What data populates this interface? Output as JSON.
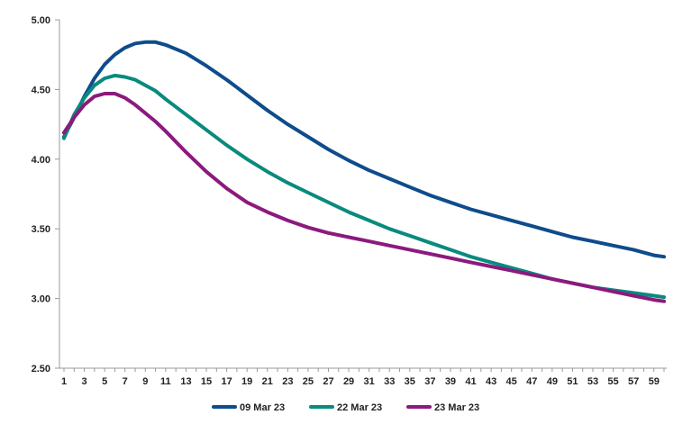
{
  "chart_data": {
    "type": "line",
    "title": "",
    "xlabel": "",
    "ylabel": "",
    "ylim": [
      2.5,
      5.0
    ],
    "xlim": [
      1,
      60
    ],
    "yticks": [
      "2.50",
      "3.00",
      "3.50",
      "4.00",
      "4.50",
      "5.00"
    ],
    "xticks": [
      "1",
      "3",
      "5",
      "7",
      "9",
      "11",
      "13",
      "15",
      "17",
      "19",
      "21",
      "23",
      "25",
      "27",
      "29",
      "31",
      "33",
      "35",
      "37",
      "39",
      "41",
      "43",
      "45",
      "47",
      "49",
      "51",
      "53",
      "55",
      "57",
      "59"
    ],
    "grid": false,
    "legend_position": "bottom",
    "series": [
      {
        "name": "09 Mar 23",
        "color": "#0E4C8B",
        "x": [
          1,
          2,
          3,
          4,
          5,
          6,
          7,
          8,
          9,
          10,
          11,
          13,
          15,
          17,
          19,
          21,
          23,
          25,
          27,
          29,
          31,
          33,
          35,
          37,
          39,
          41,
          43,
          45,
          47,
          49,
          51,
          53,
          55,
          57,
          59,
          60
        ],
        "y": [
          4.16,
          4.3,
          4.45,
          4.58,
          4.68,
          4.75,
          4.8,
          4.83,
          4.84,
          4.84,
          4.82,
          4.76,
          4.67,
          4.57,
          4.46,
          4.35,
          4.25,
          4.16,
          4.07,
          3.99,
          3.92,
          3.86,
          3.8,
          3.74,
          3.69,
          3.64,
          3.6,
          3.56,
          3.52,
          3.48,
          3.44,
          3.41,
          3.38,
          3.35,
          3.31,
          3.3
        ]
      },
      {
        "name": "22 Mar 23",
        "color": "#0A8A7E",
        "x": [
          1,
          2,
          3,
          4,
          5,
          6,
          7,
          8,
          9,
          10,
          11,
          13,
          15,
          17,
          19,
          21,
          23,
          25,
          27,
          29,
          31,
          33,
          35,
          37,
          39,
          41,
          43,
          45,
          47,
          49,
          51,
          53,
          55,
          57,
          59,
          60
        ],
        "y": [
          4.15,
          4.32,
          4.44,
          4.53,
          4.58,
          4.6,
          4.59,
          4.57,
          4.53,
          4.49,
          4.43,
          4.32,
          4.21,
          4.1,
          4.0,
          3.91,
          3.83,
          3.76,
          3.69,
          3.62,
          3.56,
          3.5,
          3.45,
          3.4,
          3.35,
          3.3,
          3.26,
          3.22,
          3.18,
          3.14,
          3.11,
          3.08,
          3.06,
          3.04,
          3.02,
          3.01
        ]
      },
      {
        "name": "23 Mar 23",
        "color": "#8C1A7E",
        "x": [
          1,
          2,
          3,
          4,
          5,
          6,
          7,
          8,
          9,
          10,
          11,
          13,
          15,
          17,
          19,
          21,
          23,
          25,
          27,
          29,
          31,
          33,
          35,
          37,
          39,
          41,
          43,
          45,
          47,
          49,
          51,
          53,
          55,
          57,
          59,
          60
        ],
        "y": [
          4.19,
          4.3,
          4.39,
          4.45,
          4.47,
          4.47,
          4.44,
          4.39,
          4.33,
          4.27,
          4.2,
          4.05,
          3.91,
          3.79,
          3.69,
          3.62,
          3.56,
          3.51,
          3.47,
          3.44,
          3.41,
          3.38,
          3.35,
          3.32,
          3.29,
          3.26,
          3.23,
          3.2,
          3.17,
          3.14,
          3.11,
          3.08,
          3.05,
          3.02,
          2.99,
          2.98
        ]
      }
    ]
  }
}
